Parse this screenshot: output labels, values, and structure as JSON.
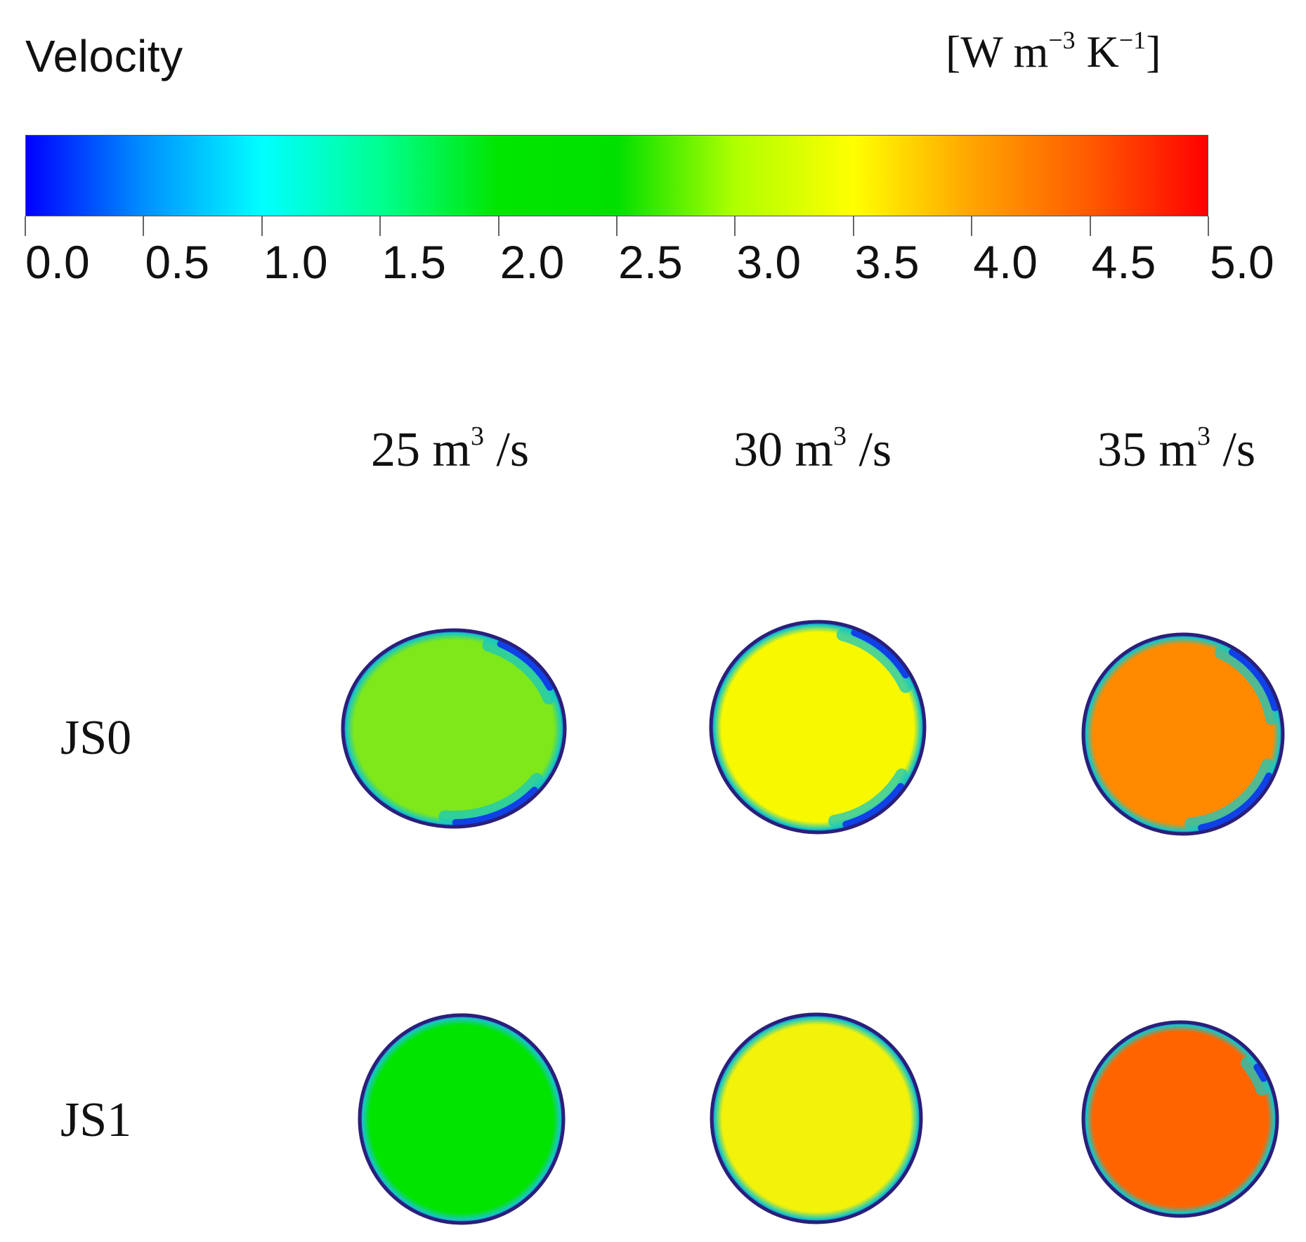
{
  "legend": {
    "title": "Velocity",
    "unit_prefix": "[W m",
    "unit_exp1": "−3",
    "unit_mid": " K",
    "unit_exp2": "−1",
    "unit_suffix": "]",
    "min": 0.0,
    "max": 5.0,
    "ticks": [
      "0.0",
      "0.5",
      "1.0",
      "1.5",
      "2.0",
      "2.5",
      "3.0",
      "3.5",
      "4.0",
      "4.5",
      "5.0"
    ],
    "colors": [
      "#0000ff",
      "#0090ff",
      "#00ffff",
      "#00ff90",
      "#00e600",
      "#00e000",
      "#b0ff00",
      "#ffff00",
      "#ffa500",
      "#ff5a00",
      "#ff0000"
    ]
  },
  "columns": [
    {
      "value": "25 m",
      "exp": "3",
      "suffix": " /s"
    },
    {
      "value": "30 m",
      "exp": "3",
      "suffix": " /s"
    },
    {
      "value": "35 m",
      "exp": "3",
      "suffix": " /s"
    }
  ],
  "rows": [
    {
      "label": "JS0"
    },
    {
      "label": "JS1"
    }
  ],
  "chart_data": {
    "type": "heatmap",
    "title": "Velocity",
    "colorbar_range": [
      0.0,
      5.0
    ],
    "colorbar_unit": "[W m−3 K−1]",
    "rows": [
      "JS0",
      "JS1"
    ],
    "columns": [
      "25 m3 /s",
      "30 m3 /s",
      "35 m3 /s"
    ],
    "core_values": [
      [
        2.9,
        3.5,
        4.2
      ],
      [
        2.6,
        3.4,
        4.4
      ]
    ]
  },
  "plot_colors": {
    "JS0": [
      "#7ee81a",
      "#f8f800",
      "#ff8a00"
    ],
    "JS1": [
      "#00e400",
      "#f2f20a",
      "#ff6400"
    ],
    "edge_dark": "#2a1f7a",
    "edge_blue": "#1040e8",
    "edge_cyan": "#18c8c0"
  }
}
